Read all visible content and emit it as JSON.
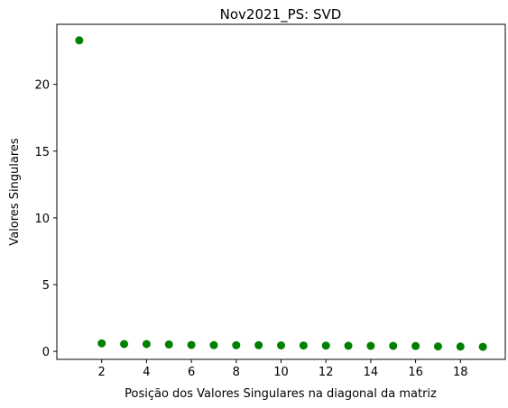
{
  "chart_data": {
    "type": "scatter",
    "title": "Nov2021_PS: SVD",
    "xlabel": "Posição dos Valores Singulares na diagonal da matriz",
    "ylabel": "Valores Singulares",
    "xlim": [
      0,
      20
    ],
    "ylim": [
      -0.6,
      24.5
    ],
    "x_ticks": [
      2,
      4,
      6,
      8,
      10,
      12,
      14,
      16,
      18
    ],
    "y_ticks": [
      0,
      5,
      10,
      15,
      20
    ],
    "grid": false,
    "color": "#008000",
    "x": [
      1,
      2,
      3,
      4,
      5,
      6,
      7,
      8,
      9,
      10,
      11,
      12,
      13,
      14,
      15,
      16,
      17,
      18,
      19
    ],
    "y": [
      23.3,
      0.6,
      0.55,
      0.55,
      0.52,
      0.48,
      0.47,
      0.46,
      0.46,
      0.45,
      0.44,
      0.43,
      0.42,
      0.41,
      0.41,
      0.4,
      0.37,
      0.36,
      0.34
    ]
  }
}
